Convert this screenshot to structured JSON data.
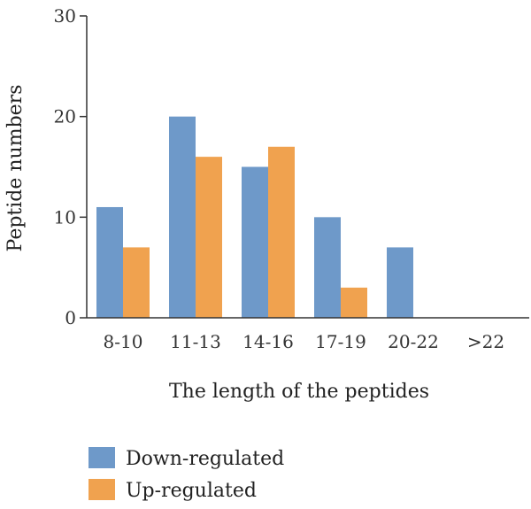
{
  "chart_data": {
    "type": "bar",
    "title": "",
    "xlabel": "The length of the peptides",
    "ylabel": "Peptide numbers",
    "categories": [
      "8-10",
      "11-13",
      "14-16",
      "17-19",
      "20-22",
      ">22"
    ],
    "series": [
      {
        "name": "Down-regulated",
        "color": "#6e99c9",
        "values": [
          11,
          20,
          15,
          10,
          7,
          0
        ]
      },
      {
        "name": "Up-regulated",
        "color": "#f0a24f",
        "values": [
          7,
          16,
          17,
          3,
          0,
          0
        ]
      }
    ],
    "ylim": [
      0,
      30
    ],
    "yticks": [
      0,
      10,
      20,
      30
    ],
    "grid": false,
    "legend_position": "bottom-left"
  }
}
